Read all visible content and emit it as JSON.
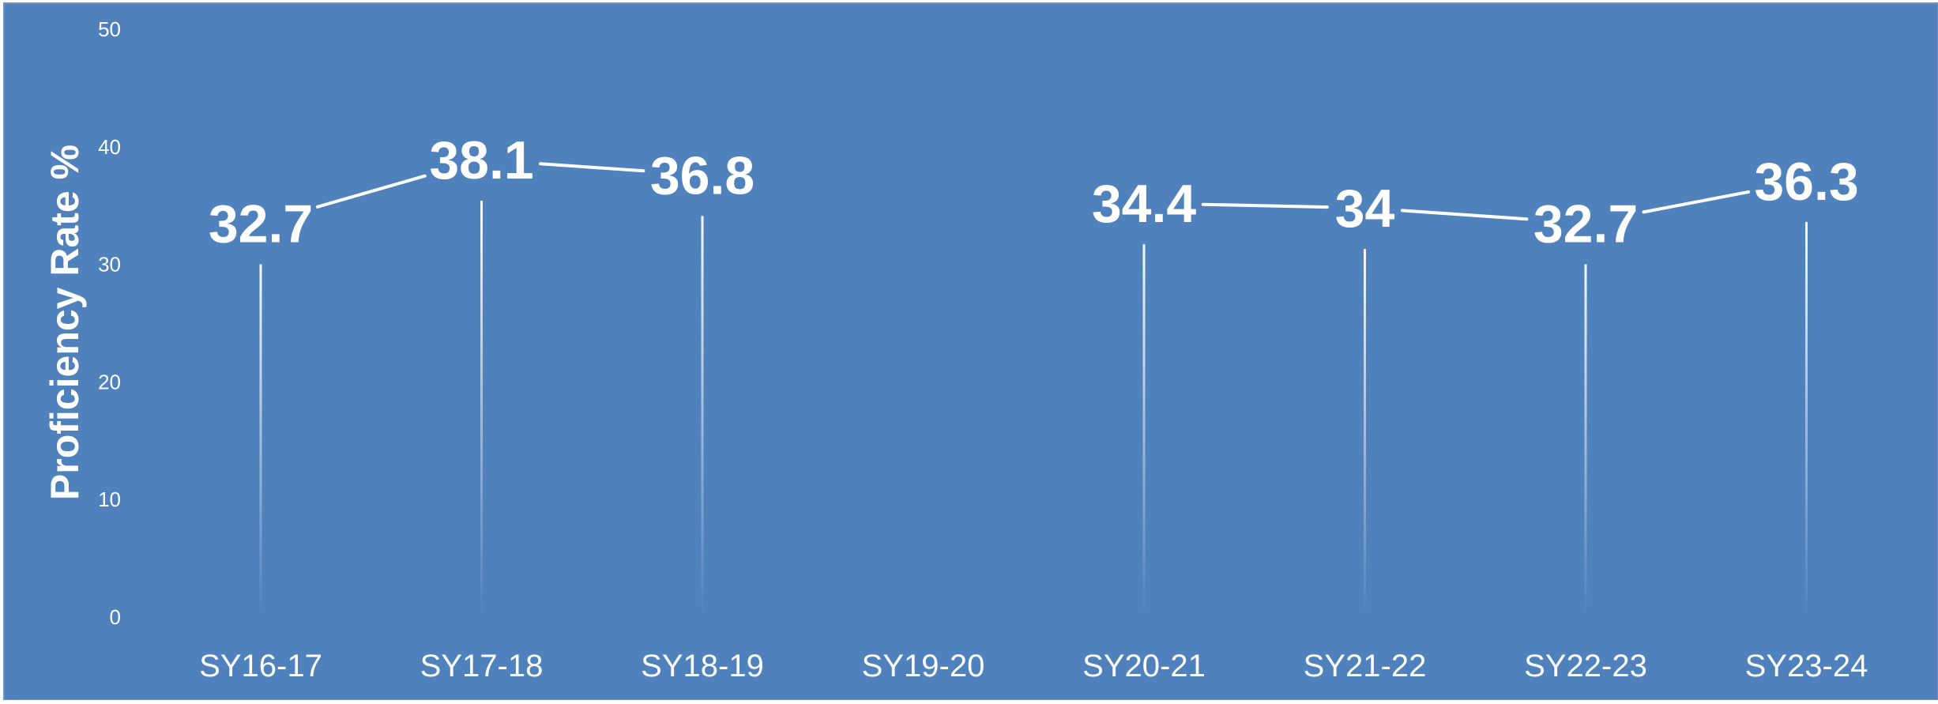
{
  "chart_data": {
    "type": "line",
    "title": "",
    "xlabel": "",
    "ylabel": "Proficiency Rate %",
    "ylim": [
      0,
      50
    ],
    "yticks": [
      0,
      10,
      20,
      30,
      40,
      50
    ],
    "grid": false,
    "legend": "none",
    "categories": [
      "SY16-17",
      "SY17-18",
      "SY18-19",
      "SY19-20",
      "SY20-21",
      "SY21-22",
      "SY22-23",
      "SY23-24"
    ],
    "series": [
      {
        "values": [
          32.7,
          38.1,
          36.8,
          null,
          34.4,
          34,
          32.7,
          36.3
        ]
      }
    ],
    "value_labels": [
      "32.7",
      "38.1",
      "36.8",
      "",
      "34.4",
      "34",
      "32.7",
      "36.3"
    ],
    "drop_lines": true
  },
  "colors": {
    "background": "#4f81bd",
    "border": "#6f94c4",
    "foreground": "#ffffff"
  }
}
